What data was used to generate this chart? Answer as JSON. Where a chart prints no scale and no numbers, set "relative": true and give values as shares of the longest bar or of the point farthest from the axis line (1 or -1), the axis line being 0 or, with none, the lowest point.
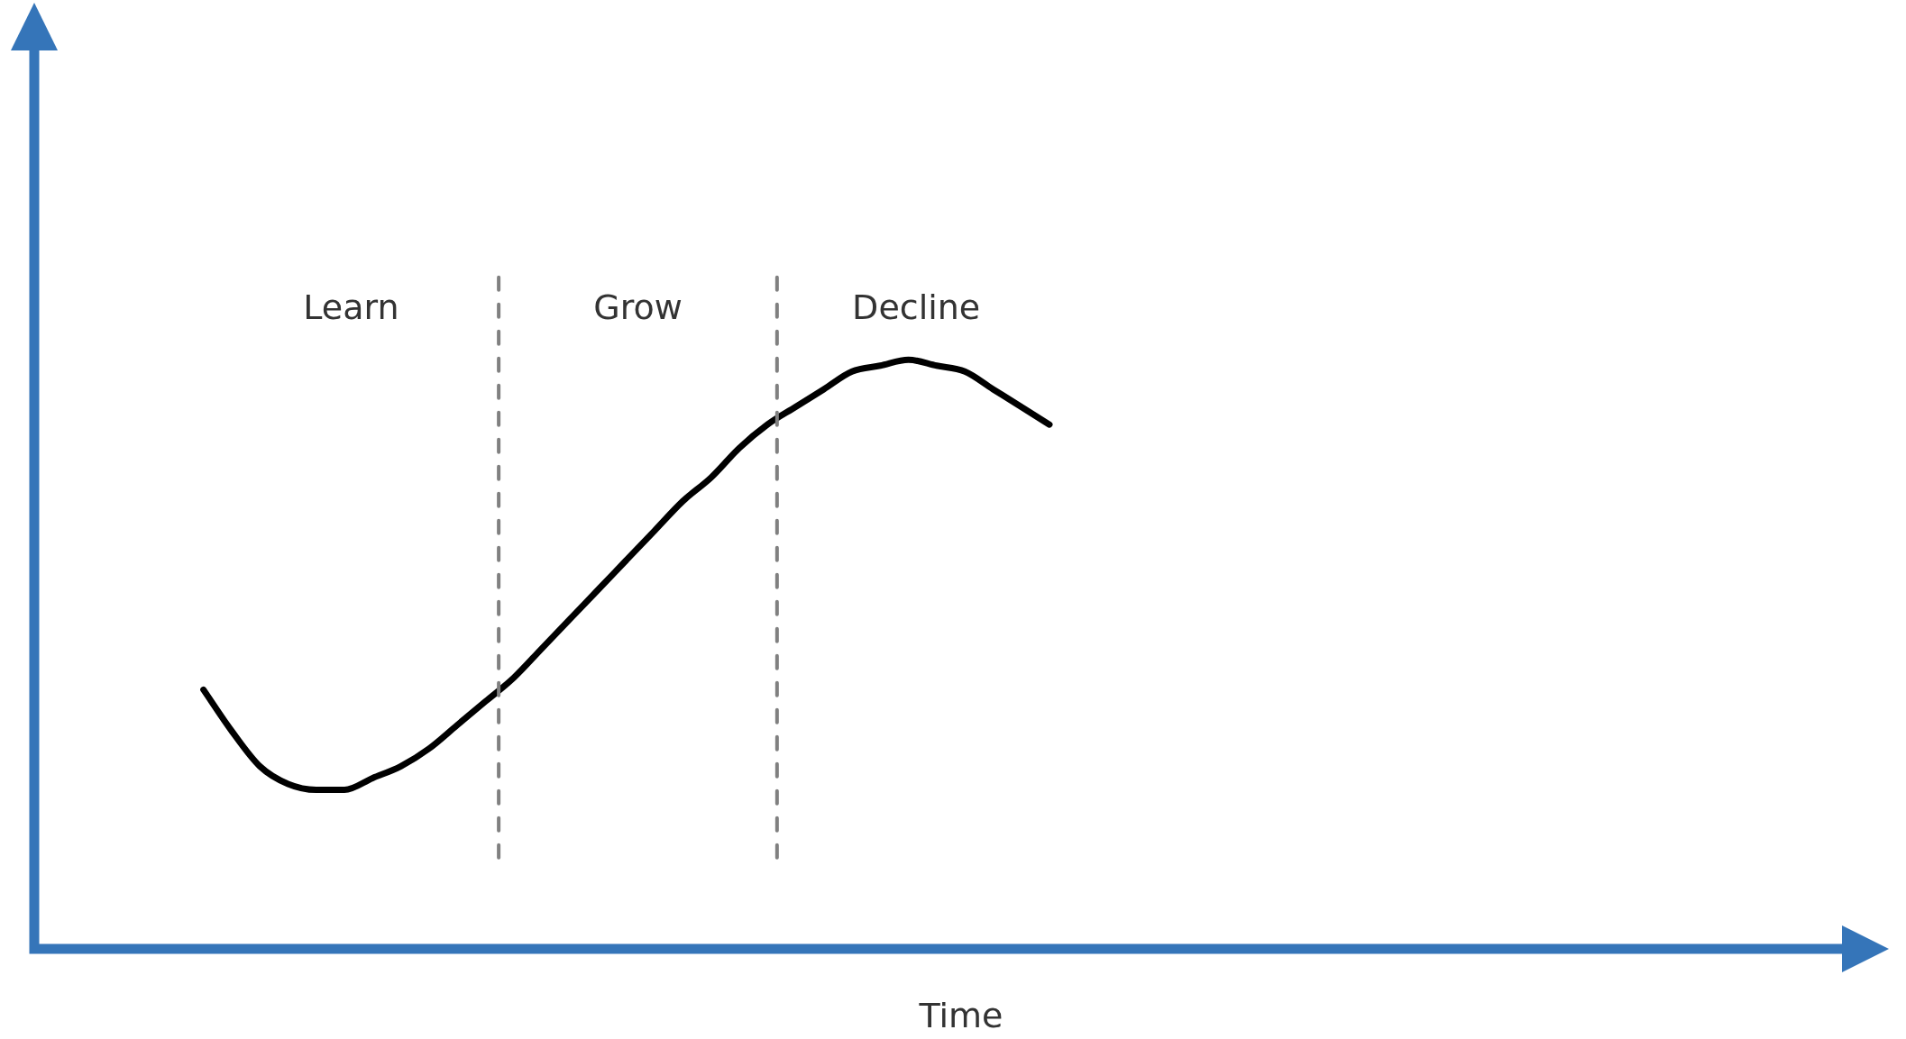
{
  "chart_data": {
    "type": "line",
    "relative": true,
    "xlabel": "Time",
    "color": "#000000",
    "categories": [
      null,
      null,
      null,
      null,
      null,
      null,
      null,
      null,
      null,
      null,
      null,
      null,
      null,
      null,
      null,
      null,
      null,
      null,
      null,
      null,
      null,
      null,
      null,
      null,
      null,
      null,
      null,
      null,
      null,
      null,
      null,
      null,
      null,
      null,
      null,
      null,
      null,
      null,
      null,
      null,
      null,
      null,
      null,
      null,
      null,
      null,
      null,
      null,
      null,
      null,
      null,
      null,
      null,
      null,
      null,
      null,
      null,
      null,
      null,
      null,
      null,
      null,
      null,
      null,
      null,
      null
    ],
    "values": [
      null,
      null,
      null,
      null,
      null,
      null,
      0.44,
      0.37,
      0.31,
      0.28,
      0.27,
      0.27,
      0.29,
      0.31,
      0.34,
      0.38,
      0.42,
      0.46,
      0.51,
      0.56,
      0.61,
      0.66,
      0.71,
      0.76,
      0.8,
      0.85,
      0.89,
      0.92,
      0.95,
      0.98,
      0.99,
      1,
      0.99,
      0.98,
      0.95,
      0.92,
      0.89,
      null,
      null,
      null,
      null,
      null,
      null,
      null,
      null,
      null,
      null,
      null,
      null,
      null,
      null,
      null,
      null,
      null,
      null,
      null,
      null,
      null,
      null,
      null,
      null,
      null,
      null,
      null,
      null,
      null
    ],
    "annotations": [
      "Learn",
      "Grow",
      "Decline"
    ]
  }
}
